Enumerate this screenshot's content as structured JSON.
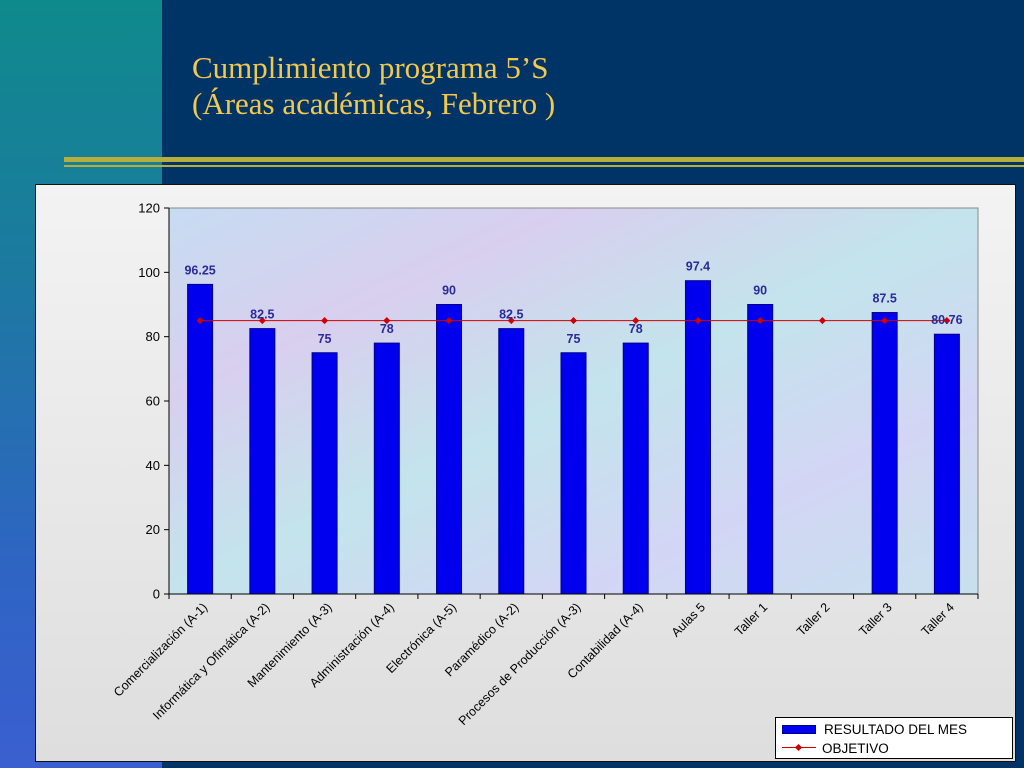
{
  "slide": {
    "title_line1": "Cumplimiento programa 5’S",
    "title_line2": "(Áreas académicas, Febrero )",
    "title_color": "#f2c94c",
    "background_color": "#003366"
  },
  "chart_data": {
    "type": "bar",
    "categories": [
      "Comercialización (A-1)",
      "Informática y Ofimática (A-2)",
      "Mantenimiento (A-3)",
      "Administración (A-4)",
      "Electrónica (A-5)",
      "Paramédico (A-2)",
      "Procesos de Producción (A-3)",
      "Contabilidad (A-4)",
      "Aulas 5",
      "Taller 1",
      "Taller 2",
      "Taller 3",
      "Taller 4"
    ],
    "series": [
      {
        "name": "RESULTADO DEL MES",
        "type": "bar",
        "color": "#0000ee",
        "values": [
          96.25,
          82.5,
          75,
          78,
          90,
          82.5,
          75,
          78,
          97.4,
          90,
          null,
          87.5,
          80.76
        ],
        "data_labels": [
          "96.25",
          "82.5",
          "75",
          "78",
          "90",
          "82.5",
          "75",
          "78",
          "97.4",
          "90",
          "",
          "87.5",
          "80.76"
        ]
      },
      {
        "name": "OBJETIVO",
        "type": "line",
        "color": "#d00000",
        "values": [
          85,
          85,
          85,
          85,
          85,
          85,
          85,
          85,
          85,
          85,
          85,
          85,
          85
        ]
      }
    ],
    "ylim": [
      0,
      120
    ],
    "yticks": [
      "0",
      "20",
      "40",
      "60",
      "80",
      "100",
      "120"
    ],
    "grid": false,
    "legend_position": "bottom-right"
  }
}
